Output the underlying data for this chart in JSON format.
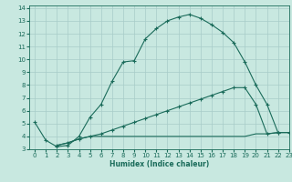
{
  "xlabel": "Humidex (Indice chaleur)",
  "bg_color": "#c8e8e0",
  "grid_color": "#a8ccc8",
  "line_color": "#1a6b5a",
  "xlim": [
    -0.5,
    23
  ],
  "ylim": [
    3,
    14.2
  ],
  "xticks": [
    0,
    1,
    2,
    3,
    4,
    5,
    6,
    7,
    8,
    9,
    10,
    11,
    12,
    13,
    14,
    15,
    16,
    17,
    18,
    19,
    20,
    21,
    22,
    23
  ],
  "yticks": [
    3,
    4,
    5,
    6,
    7,
    8,
    9,
    10,
    11,
    12,
    13,
    14
  ],
  "curve1_x": [
    0,
    1,
    2,
    3,
    4,
    5,
    6,
    7,
    8,
    9,
    10,
    11,
    12,
    13,
    14,
    15,
    16,
    17,
    18,
    19,
    20,
    21,
    22
  ],
  "curve1_y": [
    5.1,
    3.7,
    3.2,
    3.3,
    4.0,
    5.5,
    6.5,
    8.3,
    9.8,
    9.9,
    11.6,
    12.4,
    13.0,
    13.3,
    13.5,
    13.2,
    12.7,
    12.1,
    11.3,
    9.8,
    8.0,
    6.5,
    4.3
  ],
  "curve2_x": [
    2,
    3,
    4,
    5,
    6,
    7,
    8,
    9,
    10,
    11,
    12,
    13,
    14,
    15,
    16,
    17,
    18,
    19,
    20,
    21,
    22,
    23
  ],
  "curve2_y": [
    3.3,
    3.5,
    3.8,
    4.0,
    4.2,
    4.5,
    4.8,
    5.1,
    5.4,
    5.7,
    6.0,
    6.3,
    6.6,
    6.9,
    7.2,
    7.5,
    7.8,
    7.8,
    6.5,
    4.2,
    4.3,
    4.3
  ],
  "curve3_x": [
    2,
    3,
    4,
    5,
    6,
    7,
    8,
    9,
    10,
    11,
    12,
    13,
    14,
    15,
    16,
    17,
    18,
    19,
    20,
    21,
    22,
    23
  ],
  "curve3_y": [
    3.3,
    3.5,
    3.8,
    4.0,
    4.0,
    4.0,
    4.0,
    4.0,
    4.0,
    4.0,
    4.0,
    4.0,
    4.0,
    4.0,
    4.0,
    4.0,
    4.0,
    4.0,
    4.2,
    4.2,
    4.3,
    4.3
  ]
}
